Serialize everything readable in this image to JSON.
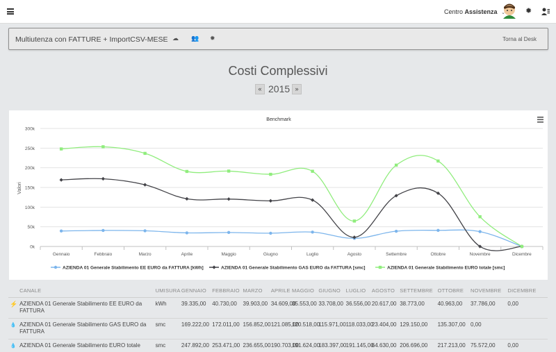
{
  "header": {
    "assist_prefix": "Centro",
    "assist_bold": "Assistenza",
    "assist_caret": "⌄"
  },
  "toolbar": {
    "title": "Multiutenza con FATTURE + ImportCSV-MESE",
    "desk_label": "Torna al Desk"
  },
  "main": {
    "title": "Costi Complessivi",
    "year": "2015",
    "prev_label": "«",
    "next_label": "»"
  },
  "colors": {
    "ee": "#7cb5ec",
    "gas": "#434348",
    "totale": "#90ed7d"
  },
  "chart_data": {
    "type": "line",
    "title": "Benchmark",
    "ylabel": "Valori",
    "xlabel": "",
    "categories": [
      "Gennaio",
      "Febbraio",
      "Marzo",
      "Aprile",
      "Maggio",
      "Giugno",
      "Luglio",
      "Agosto",
      "Settembre",
      "Ottobre",
      "Novembre",
      "Dicembre"
    ],
    "y_ticks": [
      0,
      50000,
      100000,
      150000,
      200000,
      250000,
      300000
    ],
    "y_tick_labels": [
      "0k",
      "50k",
      "100k",
      "150k",
      "200k",
      "250k",
      "300k"
    ],
    "ylim": [
      0,
      300000
    ],
    "legend_position": "bottom",
    "grid": true,
    "series": [
      {
        "name": "AZIENDA 01 Generale Stabilimento EE EURO da FATTURA [kWh]",
        "marker": "circle",
        "values": [
          39335,
          40730,
          39903,
          34609,
          35553,
          33708,
          36556,
          20617,
          38773,
          40963,
          37786,
          0
        ]
      },
      {
        "name": "AZIENDA 01 Generale Stabilimento GAS EURO da FATTURA [smc]",
        "marker": "diamond",
        "values": [
          169222,
          172011,
          156852,
          121085,
          120518,
          115971,
          118033,
          23404,
          129150,
          135307,
          0,
          0
        ]
      },
      {
        "name": "AZIENDA 01 Generale Stabilimento EURO totale [smc]",
        "marker": "square",
        "values": [
          247892,
          253471,
          236655,
          190703,
          191624,
          183397,
          191145,
          64630,
          206696,
          217213,
          75572,
          0
        ]
      }
    ]
  },
  "table": {
    "headers": [
      "CANALE",
      "UMISURA",
      "GENNAIO",
      "FEBBRAIO",
      "MARZO",
      "APRILE",
      "MAGGIO",
      "GIUGNO",
      "LUGLIO",
      "AGOSTO",
      "SETTEMBRE",
      "OTTOBRE",
      "NOVEMBRE",
      "DICEMBRE"
    ],
    "rows": [
      {
        "icon": "lightning-icon",
        "cells": [
          "AZIENDA 01 Generale Stabilimento EE EURO da FATTURA",
          "kWh",
          "39.335,00",
          "40.730,00",
          "39.903,00",
          "34.609,00",
          "35.553,00",
          "33.708,00",
          "36.556,00",
          "20.617,00",
          "38.773,00",
          "40.963,00",
          "37.786,00",
          "0,00"
        ]
      },
      {
        "icon": "gas-drop-icon",
        "cells": [
          "AZIENDA 01 Generale Stabilimento GAS EURO da FATTURA",
          "smc",
          "169.222,00",
          "172.011,00",
          "156.852,00",
          "121.085,00",
          "120.518,00",
          "115.971,00",
          "118.033,00",
          "23.404,00",
          "129.150,00",
          "135.307,00",
          "0,00",
          ""
        ]
      },
      {
        "icon": "gas-drop-icon",
        "cells": [
          "AZIENDA 01 Generale Stabilimento EURO totale",
          "smc",
          "247.892,00",
          "253.471,00",
          "236.655,00",
          "190.703,00",
          "191.624,00",
          "183.397,00",
          "191.145,00",
          "64.630,00",
          "206.696,00",
          "217.213,00",
          "75.572,00",
          "0,00"
        ]
      }
    ]
  }
}
